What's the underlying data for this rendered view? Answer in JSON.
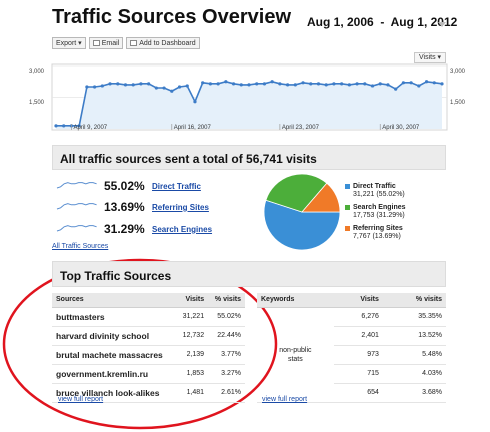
{
  "header": {
    "title": "Traffic Sources Overview",
    "date_start": "Aug 1, 2006",
    "date_sep": "-",
    "date_end": "Aug 1, 2012"
  },
  "toolbar": {
    "export_label": "Export ▾",
    "email_label": "Email",
    "dashboard_label": "Add to Dashboard"
  },
  "metric_select": "Visits ▾",
  "chart_data": {
    "type": "area",
    "series": [
      {
        "values": [
          150,
          150,
          150,
          150,
          2000,
          2000,
          2050,
          2150,
          2150,
          2100,
          2100,
          2150,
          2150,
          1950,
          1950,
          1800,
          2000,
          2050,
          1300,
          2200,
          2150,
          2150,
          2250,
          2150,
          2100,
          2100,
          2150,
          2150,
          2250,
          2150,
          2100,
          2100,
          2200,
          2150,
          2150,
          2100,
          2150,
          2150,
          2100,
          2150,
          2150,
          2050,
          2150,
          2100,
          1900,
          2200,
          2200,
          2050,
          2250,
          2200,
          2150
        ]
      }
    ],
    "ylim": [
      0,
      3000
    ],
    "y_ticks_left": [
      "3,000",
      "1,500"
    ],
    "y_ticks_right": [
      "3,000",
      "1,500"
    ],
    "x_tick_labels": [
      "April 9, 2007",
      "April 16, 2007",
      "April 23, 2007",
      "April 30, 2007"
    ],
    "color": "#3d7cc7",
    "fill": "#e5f0fa",
    "grid": true
  },
  "summary": {
    "prefix": "All traffic sources sent a total of ",
    "total": "56,741",
    "suffix": " visits"
  },
  "sources_summary": [
    {
      "pct": "55.02%",
      "label": "Direct Traffic"
    },
    {
      "pct": "13.69%",
      "label": "Referring Sites"
    },
    {
      "pct": "31.29%",
      "label": "Search Engines"
    }
  ],
  "all_sources_link": "All Traffic Sources",
  "pie": {
    "slices": [
      {
        "label": "Direct Traffic",
        "detail": "31,221 (55.02%)",
        "value": 55.02,
        "color": "#3a8fd6"
      },
      {
        "label": "Search Engines",
        "detail": "17,753 (31.29%)",
        "value": 31.29,
        "color": "#4cae3a"
      },
      {
        "label": "Referring Sites",
        "detail": "7,767 (13.69%)",
        "value": 13.69,
        "color": "#f07a28"
      }
    ]
  },
  "top_sources": {
    "title": "Top Traffic Sources",
    "columns": [
      "Sources",
      "Visits",
      "% visits"
    ],
    "rows": [
      {
        "name": "buttmasters",
        "visits": "31,221",
        "pct": "55.02%"
      },
      {
        "name": "harvard divinity school",
        "visits": "12,732",
        "pct": "22.44%"
      },
      {
        "name": "brutal machete massacres",
        "visits": "2,139",
        "pct": "3.77%"
      },
      {
        "name": "government.kremlin.ru",
        "visits": "1,853",
        "pct": "3.27%"
      },
      {
        "name": "bruce villanch look-alikes",
        "visits": "1,481",
        "pct": "2.61%"
      }
    ],
    "view_full": "view full report"
  },
  "keywords": {
    "columns": [
      "Keywords",
      "Visits",
      "% visits"
    ],
    "non_public_line1": "non-public",
    "non_public_line2": "stats",
    "rows": [
      {
        "visits": "6,276",
        "pct": "35.35%"
      },
      {
        "visits": "2,401",
        "pct": "13.52%"
      },
      {
        "visits": "973",
        "pct": "5.48%"
      },
      {
        "visits": "715",
        "pct": "4.03%"
      },
      {
        "visits": "654",
        "pct": "3.68%"
      }
    ],
    "view_full": "view full report"
  },
  "annotation": {
    "ellipse_color": "#e0141e"
  }
}
